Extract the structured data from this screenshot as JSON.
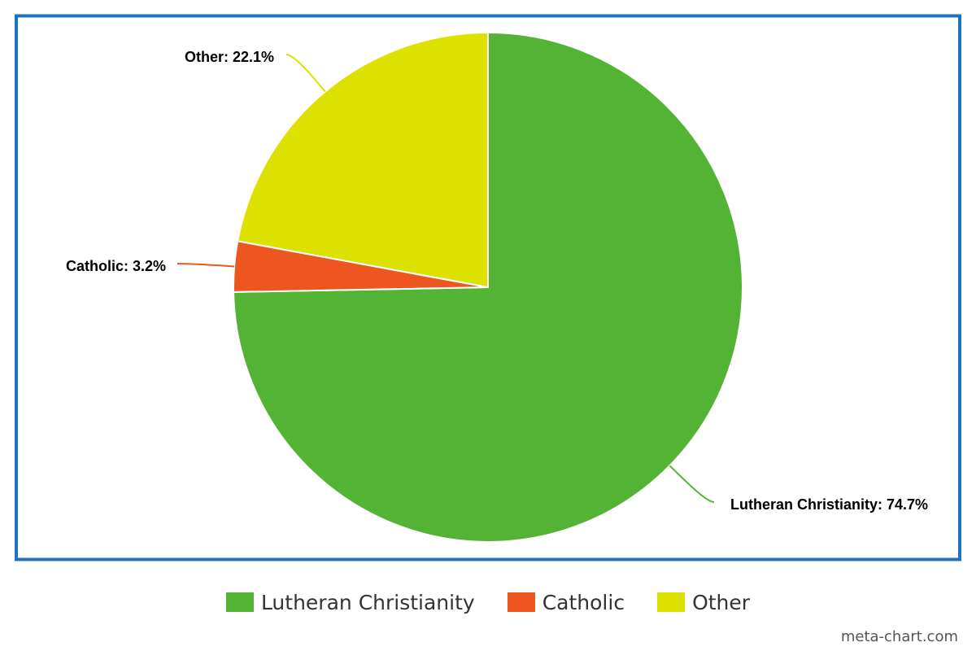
{
  "chart_data": {
    "type": "pie",
    "categories": [
      "Lutheran Christianity",
      "Catholic",
      "Other"
    ],
    "values": [
      74.7,
      3.2,
      22.1
    ],
    "unit": "%",
    "data_labels": [
      "Lutheran Christianity: 74.7%",
      "Catholic: 3.2%",
      "Other: 22.1%"
    ],
    "colors": [
      "#52b335",
      "#ee561f",
      "#dde100"
    ],
    "start_angle_deg": 0,
    "direction": "clockwise",
    "legend_position": "bottom-center"
  },
  "frame": {
    "border_color": "#1c73c4"
  },
  "legend": {
    "items": [
      {
        "label": "Lutheran Christianity",
        "color": "#52b335"
      },
      {
        "label": "Catholic",
        "color": "#ee561f"
      },
      {
        "label": "Other",
        "color": "#dde100"
      }
    ]
  },
  "watermark": "meta-chart.com"
}
